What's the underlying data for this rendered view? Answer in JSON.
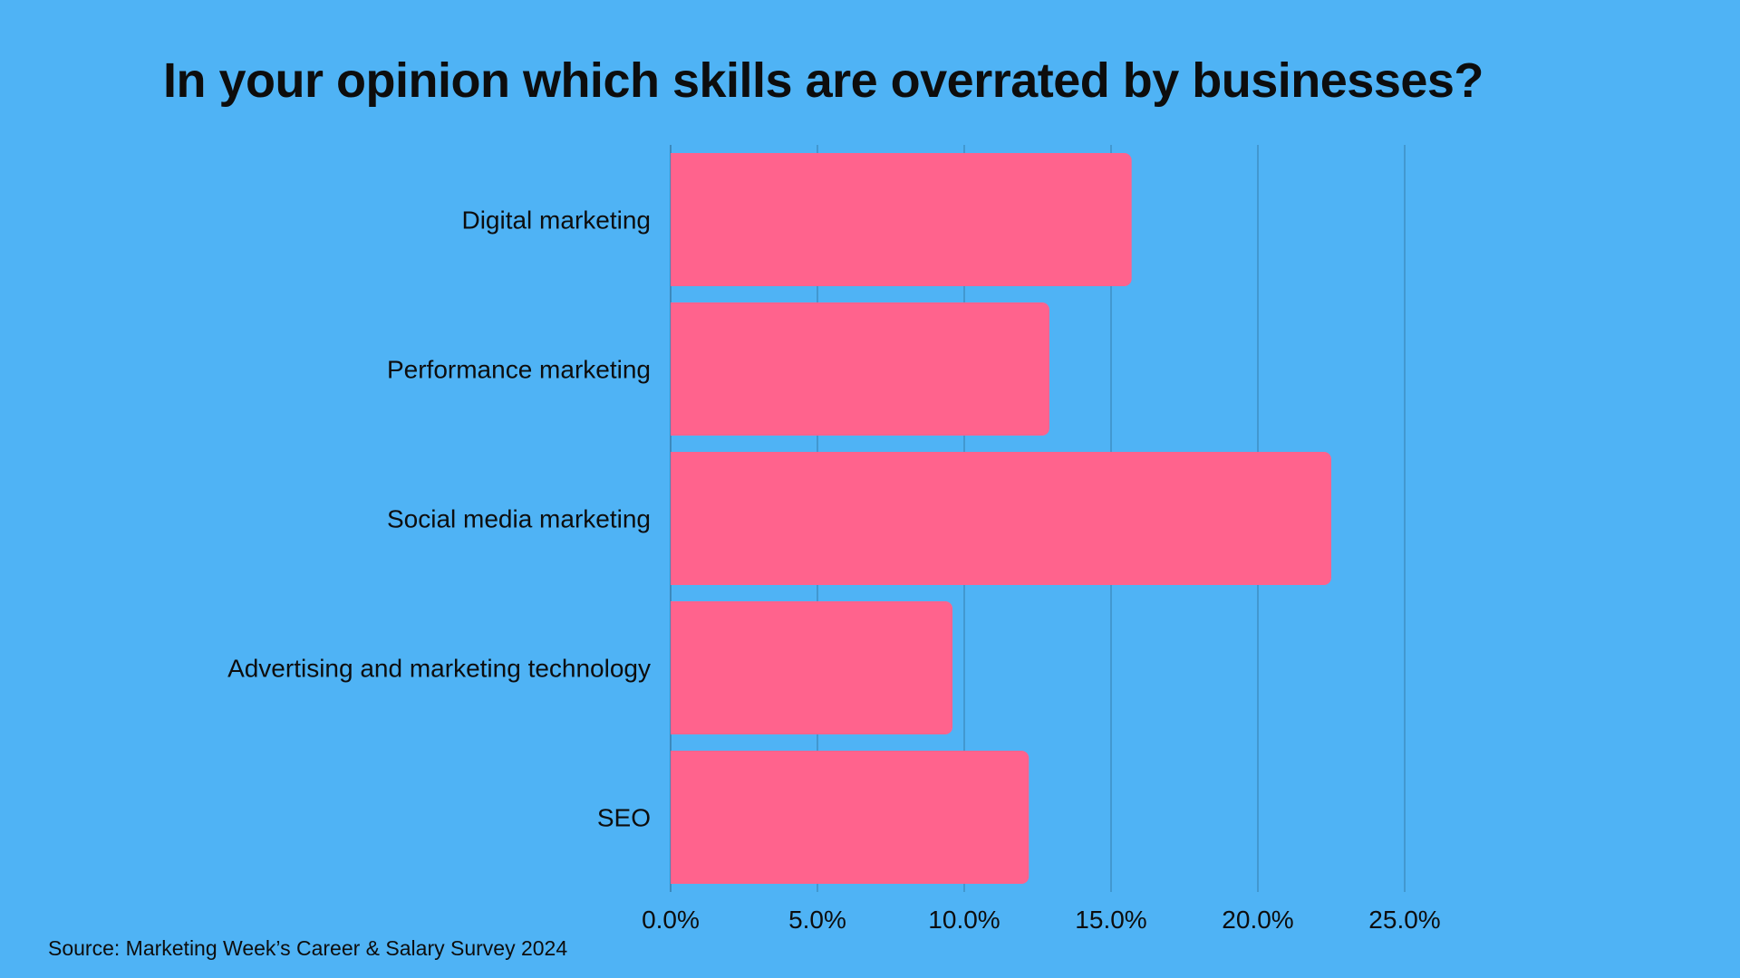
{
  "chart_data": {
    "type": "bar",
    "orientation": "horizontal",
    "title": "In your opinion which skills are overrated by businesses?",
    "categories": [
      "Digital marketing",
      "Performance marketing",
      "Social media marketing",
      "Advertising and marketing technology",
      "SEO"
    ],
    "values": [
      15.7,
      12.9,
      22.5,
      9.6,
      12.2
    ],
    "xlabel": "",
    "ylabel": "",
    "xlim": [
      0,
      25
    ],
    "xticks": [
      0,
      5,
      10,
      15,
      20,
      25
    ],
    "xtick_labels": [
      "0.0%",
      "5.0%",
      "10.0%",
      "15.0%",
      "20.0%",
      "25.0%"
    ],
    "grid": true,
    "legend": "none",
    "colors": {
      "background": "#4FB3F5",
      "bar": "#FF638D",
      "grid": "#3A86B8"
    }
  },
  "source": "Source: Marketing Week’s Career & Salary Survey 2024"
}
